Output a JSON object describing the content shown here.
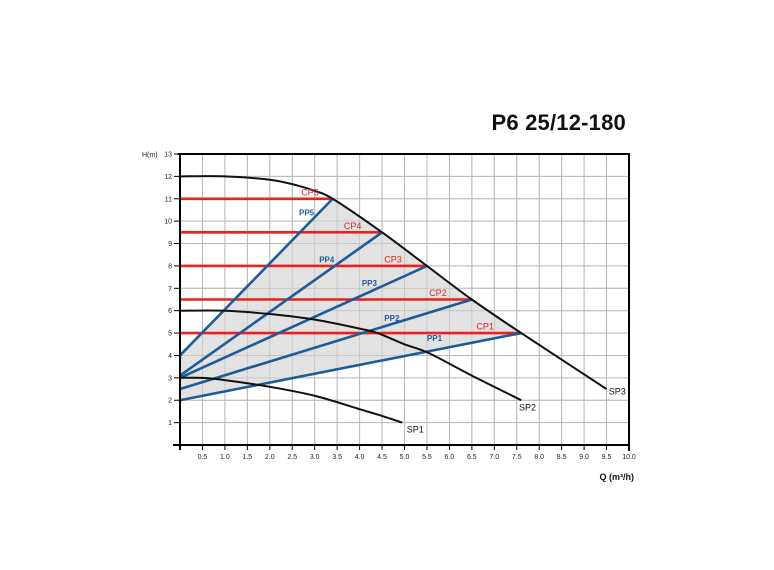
{
  "chart_data": {
    "type": "line",
    "title": "P6 25/12-180",
    "xlabel": "Q (m³/h)",
    "ylabel": "H(m)",
    "xlim": [
      0,
      10
    ],
    "ylim": [
      0,
      13
    ],
    "grid": true,
    "x_ticks": [
      "0.5",
      "1.0",
      "1.5",
      "2.0",
      "2.5",
      "3.0",
      "3.5",
      "4.0",
      "4.5",
      "5.0",
      "5.5",
      "6.0",
      "6.5",
      "7.0",
      "7.5",
      "8.0",
      "8.5",
      "9.0",
      "9.5",
      "10.0"
    ],
    "y_ticks": [
      "1",
      "2",
      "3",
      "4",
      "5",
      "6",
      "7",
      "8",
      "9",
      "10",
      "11",
      "12",
      "13"
    ],
    "shaded_region": {
      "color": "#e2e2e2",
      "description": "operating area between PP lines, CP lines and SP3"
    },
    "series": [
      {
        "name": "SP1",
        "kind": "max-speed curve",
        "color": "#111111",
        "points": [
          [
            0,
            3.0
          ],
          [
            0.5,
            3.0
          ],
          [
            1.0,
            2.9
          ],
          [
            2.0,
            2.6
          ],
          [
            3.0,
            2.2
          ],
          [
            4.0,
            1.6
          ],
          [
            4.5,
            1.3
          ],
          [
            4.95,
            1.0
          ]
        ]
      },
      {
        "name": "SP2",
        "kind": "max-speed curve",
        "color": "#111111",
        "points": [
          [
            0,
            6.0
          ],
          [
            1.0,
            6.0
          ],
          [
            2.0,
            5.85
          ],
          [
            3.0,
            5.6
          ],
          [
            4.0,
            5.2
          ],
          [
            4.4,
            5.0
          ],
          [
            5.0,
            4.5
          ],
          [
            5.55,
            4.1
          ],
          [
            6.5,
            3.1
          ],
          [
            7.6,
            2.0
          ]
        ]
      },
      {
        "name": "SP3",
        "kind": "max-speed curve",
        "color": "#111111",
        "points": [
          [
            0,
            12.0
          ],
          [
            1.0,
            12.0
          ],
          [
            2.0,
            11.85
          ],
          [
            2.6,
            11.6
          ],
          [
            3.0,
            11.35
          ],
          [
            3.4,
            11.0
          ],
          [
            4.5,
            9.5
          ],
          [
            5.5,
            8.0
          ],
          [
            6.5,
            6.5
          ],
          [
            7.6,
            5.0
          ],
          [
            9.5,
            2.5
          ]
        ]
      },
      {
        "name": "PP1",
        "kind": "proportional pressure",
        "color": "#1f5a99",
        "points": [
          [
            0,
            2.0
          ],
          [
            7.6,
            5.0
          ]
        ]
      },
      {
        "name": "PP2",
        "kind": "proportional pressure",
        "color": "#1f5a99",
        "points": [
          [
            0,
            2.5
          ],
          [
            6.5,
            6.5
          ]
        ]
      },
      {
        "name": "PP3",
        "kind": "proportional pressure",
        "color": "#1f5a99",
        "points": [
          [
            0,
            3.0
          ],
          [
            5.5,
            8.0
          ]
        ]
      },
      {
        "name": "PP4",
        "kind": "proportional pressure",
        "color": "#1f5a99",
        "points": [
          [
            0,
            3.1
          ],
          [
            4.5,
            9.5
          ]
        ]
      },
      {
        "name": "PP5",
        "kind": "proportional pressure",
        "color": "#1f5a99",
        "points": [
          [
            0,
            4.0
          ],
          [
            3.4,
            11.0
          ]
        ]
      },
      {
        "name": "CP1",
        "kind": "constant pressure",
        "color": "#e8231f",
        "points": [
          [
            0,
            5.0
          ],
          [
            7.6,
            5.0
          ]
        ]
      },
      {
        "name": "CP2",
        "kind": "constant pressure",
        "color": "#e8231f",
        "points": [
          [
            0,
            6.5
          ],
          [
            6.5,
            6.5
          ]
        ]
      },
      {
        "name": "CP3",
        "kind": "constant pressure",
        "color": "#e8231f",
        "points": [
          [
            0,
            8.0
          ],
          [
            5.5,
            8.0
          ]
        ]
      },
      {
        "name": "CP4",
        "kind": "constant pressure",
        "color": "#e8231f",
        "points": [
          [
            0,
            9.5
          ],
          [
            4.5,
            9.5
          ]
        ]
      },
      {
        "name": "CP5",
        "kind": "constant pressure",
        "color": "#e8231f",
        "points": [
          [
            0,
            11.0
          ],
          [
            3.4,
            11.0
          ]
        ]
      }
    ],
    "annotations": [
      {
        "text": "CP5",
        "x": 2.7,
        "y": 11.15
      },
      {
        "text": "CP4",
        "x": 3.65,
        "y": 9.65
      },
      {
        "text": "CP3",
        "x": 4.55,
        "y": 8.15
      },
      {
        "text": "CP2",
        "x": 5.55,
        "y": 6.65
      },
      {
        "text": "CP1",
        "x": 6.6,
        "y": 5.15
      },
      {
        "text": "PP5",
        "x": 2.65,
        "y": 10.25
      },
      {
        "text": "PP4",
        "x": 3.1,
        "y": 8.15
      },
      {
        "text": "PP3",
        "x": 4.05,
        "y": 7.1
      },
      {
        "text": "PP2",
        "x": 4.55,
        "y": 5.55
      },
      {
        "text": "PP1",
        "x": 5.5,
        "y": 4.65
      },
      {
        "text": "SP1",
        "x": 5.05,
        "y": 0.55
      },
      {
        "text": "SP2",
        "x": 7.55,
        "y": 1.55
      },
      {
        "text": "SP3",
        "x": 9.55,
        "y": 2.25
      }
    ]
  }
}
